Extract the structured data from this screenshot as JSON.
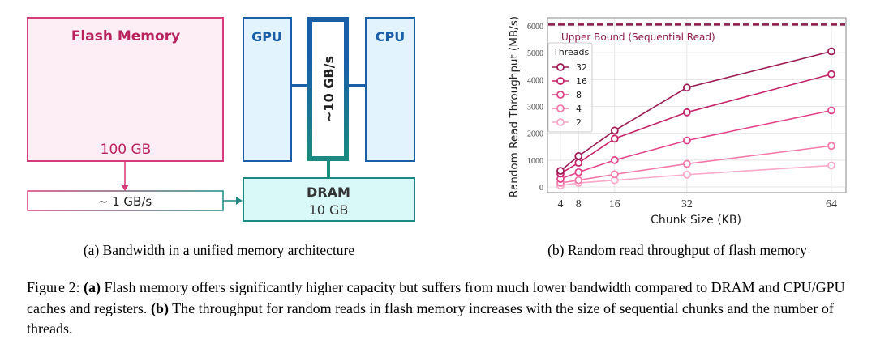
{
  "diagram": {
    "flash_title": "Flash Memory",
    "flash_size": "100 GB",
    "flash_bandwidth": "~ 1 GB/s",
    "gpu": "GPU",
    "cpu": "CPU",
    "bus_bandwidth": "~10 GB/s",
    "dram_title": "DRAM",
    "dram_size": "10 GB",
    "colors": {
      "flash": "#d63a7a",
      "flash_fill": "#fdeef5",
      "blue": "#1a5ea8",
      "blue_fill": "#e3f3fd",
      "teal": "#1b8a80",
      "teal_fill": "#d9f8f8"
    }
  },
  "subcaption_a": "(a) Bandwidth in a unified memory architecture",
  "subcaption_b": "(b) Random read throughput of flash memory",
  "figure_caption": {
    "label": "Figure 2: ",
    "a_tag": "(a)",
    "a_text": " Flash memory offers significantly higher capacity but suffers from much lower bandwidth compared to DRAM and CPU/GPU caches and registers. ",
    "b_tag": "(b)",
    "b_text": " The throughput for random reads in flash memory increases with the size of sequential chunks and the number of threads."
  },
  "chart_data": {
    "type": "line",
    "xlabel": "Chunk Size (KB)",
    "ylabel": "Random Read Throughput (MB/s)",
    "x": [
      4,
      8,
      16,
      32,
      64
    ],
    "xticks": [
      "4",
      "8",
      "16",
      "32",
      "64"
    ],
    "yticks": [
      "0",
      "1000",
      "2000",
      "3000",
      "4000",
      "5000",
      "6000"
    ],
    "ylim": [
      0,
      6000
    ],
    "grid": true,
    "upper_bound": {
      "value": 6050,
      "label": "Upper Bound (Sequential Read)",
      "color": "#8b1a4a"
    },
    "legend": {
      "title": "Threads",
      "placement": "upper-left"
    },
    "series": [
      {
        "name": "32",
        "color": "#9b1b55",
        "values": [
          600,
          1150,
          2100,
          3700,
          5050
        ]
      },
      {
        "name": "16",
        "color": "#c4246a",
        "values": [
          500,
          900,
          1800,
          2780,
          4200
        ]
      },
      {
        "name": "8",
        "color": "#e2458b",
        "values": [
          300,
          550,
          1000,
          1730,
          2850
        ]
      },
      {
        "name": "4",
        "color": "#f27aaa",
        "values": [
          150,
          250,
          470,
          860,
          1530
        ]
      },
      {
        "name": "2",
        "color": "#f9a8c9",
        "values": [
          50,
          150,
          250,
          460,
          800
        ]
      }
    ]
  }
}
